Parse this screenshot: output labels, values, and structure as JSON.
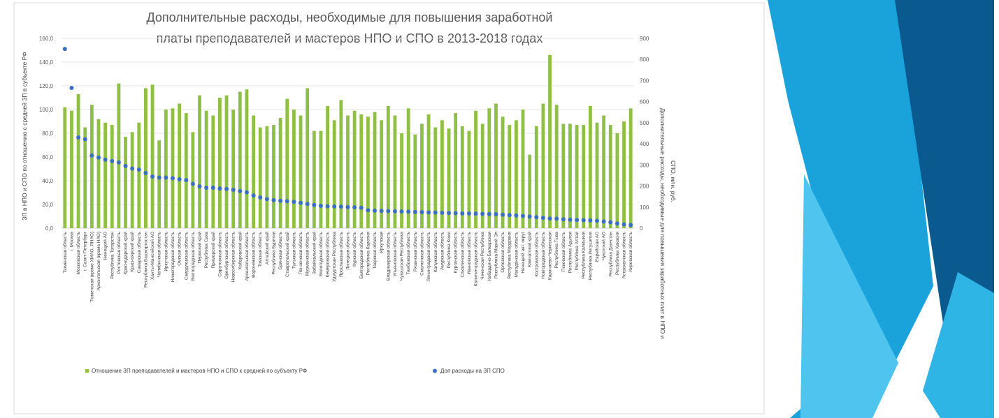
{
  "chart_data": {
    "type": "bar",
    "title_line1": "Дополнительные расходы, необходимые для повышения заработной",
    "title_line2": "платы преподавателей и мастеров НПО и СПО в 2013-2018 годах",
    "ylabel_left": "ЗП в НПО и СПО по отношению с средней ЗП в субъекте РФ",
    "ylabel_right_line1": "Дополнительные расходы, необходимые для повышения заработных плат в НПО и",
    "ylabel_right_line2": "СПО, млн. руб.",
    "ylim_left": [
      0,
      160
    ],
    "yticks_left": [
      "0,0",
      "20,0",
      "40,0",
      "60,0",
      "80,0",
      "100,0",
      "120,0",
      "140,0",
      "160,0"
    ],
    "ylim_right": [
      0,
      900
    ],
    "yticks_right": [
      "0",
      "100",
      "200",
      "300",
      "400",
      "500",
      "600",
      "700",
      "800",
      "900"
    ],
    "grid": true,
    "legend_position": "bottom",
    "series": [
      {
        "name": "Отношение ЗП преподавателей и мастеров НПО и СПО к средней по субъекту РФ",
        "type": "bar",
        "axis": "left",
        "color": "#8fbf45",
        "values": [
          102,
          99,
          113,
          85,
          104,
          92,
          89,
          87,
          122,
          77,
          81,
          89,
          118,
          121,
          74,
          100,
          101,
          105,
          97,
          81,
          112,
          99,
          95,
          110,
          112,
          100,
          115,
          117,
          95,
          85,
          86,
          87,
          93,
          109,
          100,
          95,
          118,
          82,
          82,
          103,
          91,
          108,
          95,
          99,
          96,
          94,
          98,
          91,
          103,
          95,
          80,
          101,
          79,
          88,
          96,
          85,
          91,
          84,
          97,
          86,
          82,
          99,
          88,
          101,
          105,
          94,
          87,
          91,
          100,
          62,
          86,
          105,
          146,
          104,
          88,
          88,
          87,
          87,
          103,
          89,
          95,
          87,
          80,
          90,
          101
        ]
      },
      {
        "name": "Доп расходы на ЗП СПО",
        "type": "scatter",
        "axis": "right",
        "color": "#3a6fc4",
        "values": [
          850,
          665,
          430,
          422,
          345,
          335,
          325,
          318,
          312,
          295,
          283,
          278,
          262,
          245,
          240,
          240,
          237,
          232,
          228,
          210,
          198,
          192,
          192,
          188,
          186,
          182,
          176,
          170,
          155,
          146,
          138,
          133,
          130,
          128,
          125,
          120,
          115,
          110,
          106,
          104,
          103,
          102,
          100,
          99,
          97,
          85,
          83,
          82,
          81,
          80,
          79,
          78,
          77,
          76,
          75,
          74,
          73,
          72,
          71,
          70,
          70,
          69,
          68,
          67,
          66,
          64,
          62,
          60,
          58,
          55,
          52,
          49,
          46,
          45,
          42,
          40,
          39,
          38,
          37,
          35,
          32,
          28,
          22,
          18,
          15
        ]
      }
    ],
    "categories": [
      "Тюменская область",
      "г. Москва",
      "Московская область",
      "г. Санкт-Петербург",
      "Тюменская (кроме ХМАО, ЯНАО)",
      "Архангельская (кроме НАО)",
      "Ненецкий АО",
      "Республика Татарстан",
      "Ростовская область",
      "Краснодарский край",
      "Красноярский край",
      "Самарская область",
      "Республика Башкортостан",
      "Ханты-Мансийский АО",
      "Челябинская область",
      "Иркутская область",
      "Нижегородская область",
      "Омская область",
      "Свердловская область",
      "Волгоградская область",
      "Пермский край",
      "Республика Саха",
      "Приморский край",
      "Саратовская область",
      "Оренбургская область",
      "Новосибирская область",
      "Хабаровский край",
      "Архангельская область",
      "Воронежская область",
      "Томская область",
      "Алтайский край",
      "Республика Бурятия",
      "Брянская область",
      "Ставропольский край",
      "Тульская область",
      "Пензенская область",
      "Мурманская область",
      "Забайкальский край",
      "Вологодская область",
      "Кемеровская область",
      "Удмуртская Республика",
      "Ярославская область",
      "Липецкая область",
      "Курская область",
      "Белгородская область",
      "Республика Карелия",
      "Тверская область",
      "Иркутская",
      "Владимирская область",
      "Ульяновская область",
      "Чувашская Республика",
      "Тамбовская область",
      "Рязанская область",
      "Смоленская область",
      "Ленинградская область",
      "Калужская область",
      "Амурская область",
      "Республика Коми",
      "Курганская область",
      "Сахалинская область",
      "Ивановская область",
      "Калининградская область",
      "Чеченская Республика",
      "Кабардино-Балкарская",
      "Республика Марий Эл",
      "Орловская область",
      "Республика Мордовия",
      "Магаданская область",
      "Ненецкий авт. округ",
      "Камчатский край",
      "Костромская область",
      "Новгородская область",
      "Карачаево-Черкесская",
      "Республика Тыва",
      "Псковская область",
      "Республика Адыгея",
      "Республика Алтай",
      "Республика Калмыкия",
      "Республика Ингушетия",
      "Еврейская АО",
      "Чукотский АО",
      "Республика Дагестан",
      "Республика Хакасия",
      "Астраханская область",
      "Кировская область"
    ]
  }
}
